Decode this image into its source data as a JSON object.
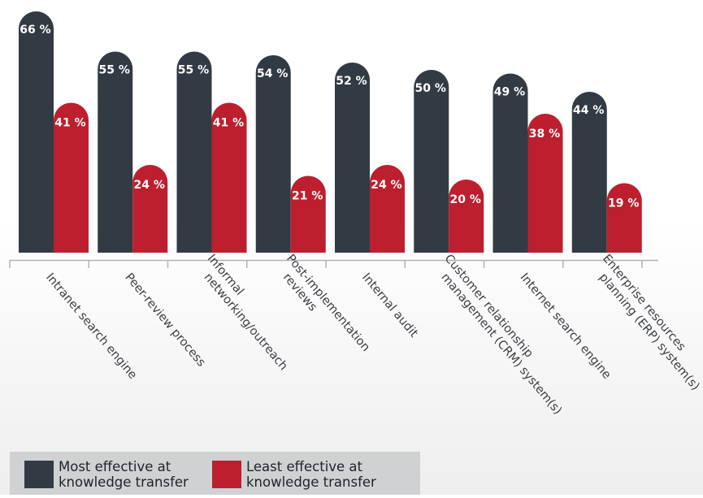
{
  "chart_data": {
    "type": "bar",
    "categories": [
      "Intranet search engine",
      "Peer-review process",
      "Informal\nnetworking/outreach",
      "Post-implementation\nreviews",
      "Internal audit",
      "Customer relationship\nmanagement (CRM) system(s)",
      "Internet search engine",
      "Enterprise resources\nplanning (ERP) system(s)"
    ],
    "series": [
      {
        "name": "Most effective at\nknowledge transfer",
        "color": "#323b44",
        "values": [
          66,
          55,
          55,
          54,
          52,
          50,
          49,
          44
        ]
      },
      {
        "name": "Least effective at\nknowledge transfer",
        "color": "#bd1f2e",
        "values": [
          41,
          24,
          41,
          21,
          24,
          20,
          38,
          19
        ]
      }
    ],
    "value_suffix": " %",
    "title": "",
    "xlabel": "",
    "ylabel": "",
    "ylim": [
      0,
      66
    ],
    "grid": false,
    "legend_position": "bottom-left"
  }
}
